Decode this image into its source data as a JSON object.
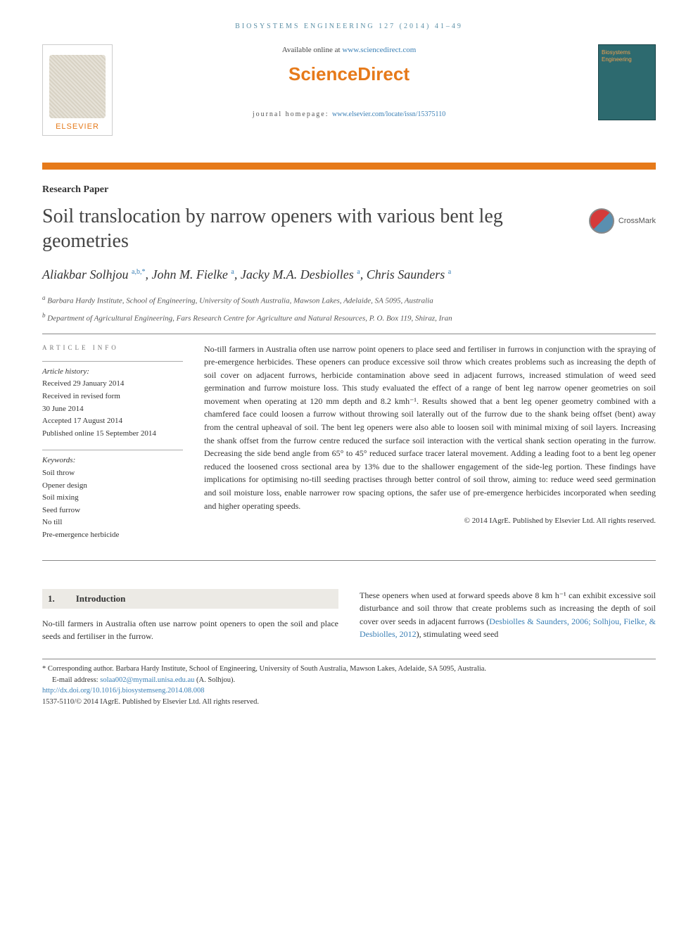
{
  "running_head": "BIOSYSTEMS ENGINEERING 127 (2014) 41–49",
  "masthead": {
    "available_prefix": "Available online at ",
    "available_link": "www.sciencedirect.com",
    "sd_logo": "ScienceDirect",
    "homepage_prefix": "journal homepage: ",
    "homepage_link": "www.elsevier.com/locate/issn/15375110",
    "elsevier": "ELSEVIER",
    "cover_title": "Biosystems Engineering"
  },
  "article_type": "Research Paper",
  "title": "Soil translocation by narrow openers with various bent leg geometries",
  "crossmark": "CrossMark",
  "authors_html": "Aliakbar Solhjou <sup>a,b,*</sup>, John M. Fielke <sup>a</sup>, Jacky M.A. Desbiolles <sup>a</sup>, Chris Saunders <sup>a</sup>",
  "authors": {
    "a1": "Aliakbar Solhjou ",
    "a1s": "a,b,",
    "a1star": "*",
    "a2": ", John M. Fielke ",
    "a2s": "a",
    "a3": ", Jacky M.A. Desbiolles ",
    "a3s": "a",
    "a4": ", Chris Saunders ",
    "a4s": "a"
  },
  "affiliations": {
    "a": "Barbara Hardy Institute, School of Engineering, University of South Australia, Mawson Lakes, Adelaide, SA 5095, Australia",
    "b": "Department of Agricultural Engineering, Fars Research Centre for Agriculture and Natural Resources, P. O. Box 119, Shiraz, Iran"
  },
  "info": {
    "heading": "ARTICLE INFO",
    "history_label": "Article history:",
    "received": "Received 29 January 2014",
    "revised1": "Received in revised form",
    "revised2": "30 June 2014",
    "accepted": "Accepted 17 August 2014",
    "published": "Published online 15 September 2014",
    "keywords_label": "Keywords:",
    "keywords": [
      "Soil throw",
      "Opener design",
      "Soil mixing",
      "Seed furrow",
      "No till",
      "Pre-emergence herbicide"
    ]
  },
  "abstract": "No-till farmers in Australia often use narrow point openers to place seed and fertiliser in furrows in conjunction with the spraying of pre-emergence herbicides. These openers can produce excessive soil throw which creates problems such as increasing the depth of soil cover on adjacent furrows, herbicide contamination above seed in adjacent furrows, increased stimulation of weed seed germination and furrow moisture loss. This study evaluated the effect of a range of bent leg narrow opener geometries on soil movement when operating at 120 mm depth and 8.2 kmh⁻¹. Results showed that a bent leg opener geometry combined with a chamfered face could loosen a furrow without throwing soil laterally out of the furrow due to the shank being offset (bent) away from the central upheaval of soil. The bent leg openers were also able to loosen soil with minimal mixing of soil layers. Increasing the shank offset from the furrow centre reduced the surface soil interaction with the vertical shank section operating in the furrow. Decreasing the side bend angle from 65° to 45° reduced surface tracer lateral movement. Adding a leading foot to a bent leg opener reduced the loosened cross sectional area by 13% due to the shallower engagement of the side-leg portion. These findings have implications for optimising no-till seeding practises through better control of soil throw, aiming to: reduce weed seed germination and soil moisture loss, enable narrower row spacing options, the safer use of pre-emergence herbicides incorporated when seeding and higher operating speeds.",
  "copyright": "© 2014 IAgrE. Published by Elsevier Ltd. All rights reserved.",
  "section": {
    "num": "1.",
    "title": "Introduction"
  },
  "body_left": "No-till farmers in Australia often use narrow point openers to open the soil and place seeds and fertiliser in the furrow.",
  "body_right_1": "These openers when used at forward speeds above 8 km h⁻¹ can exhibit excessive soil disturbance and soil throw that create problems such as increasing the depth of soil cover over seeds in adjacent furrows (",
  "body_right_link": "Desbiolles & Saunders, 2006; Solhjou, Fielke, & Desbiolles, 2012",
  "body_right_2": "), stimulating weed seed",
  "footer": {
    "corr": "* Corresponding author. Barbara Hardy Institute, School of Engineering, University of South Australia, Mawson Lakes, Adelaide, SA 5095, Australia.",
    "email_label": "E-mail address: ",
    "email": "solaa002@mymail.unisa.edu.au",
    "email_suffix": " (A. Solhjou).",
    "doi": "http://dx.doi.org/10.1016/j.biosystemseng.2014.08.008",
    "issn": "1537-5110/© 2014 IAgrE. Published by Elsevier Ltd. All rights reserved."
  },
  "colors": {
    "orange": "#e67a1a",
    "link": "#3a7fb5",
    "teal": "#2d6a6f"
  }
}
